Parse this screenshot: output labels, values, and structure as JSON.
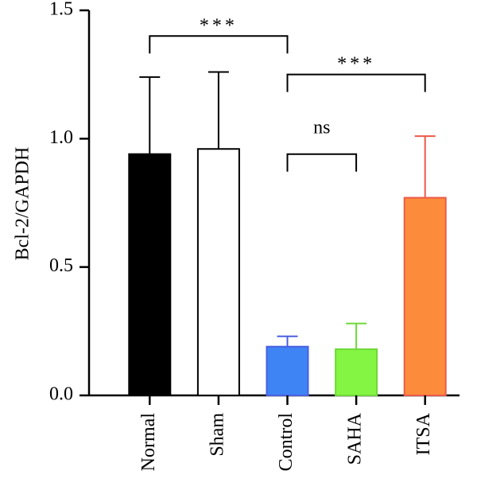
{
  "chart_data": {
    "type": "bar",
    "title": "",
    "xlabel": "",
    "ylabel": "Bcl-2/GAPDH",
    "ylim": [
      0,
      1.5
    ],
    "yticks": [
      "0.0",
      "0.5",
      "1.0",
      "1.5"
    ],
    "categories": [
      "Normal",
      "Sham",
      "Control",
      "SAHA",
      "ITSA"
    ],
    "values": [
      0.94,
      0.96,
      0.19,
      0.18,
      0.77
    ],
    "errors": [
      0.3,
      0.3,
      0.04,
      0.1,
      0.24
    ],
    "colors": [
      "#000000",
      "#ffffff",
      "#3f84f5",
      "#84f542",
      "#fc8c3c"
    ],
    "edge_colors": [
      "#000000",
      "#000000",
      "#4a5fe0",
      "#6fd83a",
      "#ec5a4a"
    ],
    "grid": false,
    "legend": "none",
    "comparisons": [
      {
        "from": "Normal",
        "to": "Control",
        "label": "***",
        "level": 1.4
      },
      {
        "from": "Control",
        "to": "ITSA",
        "label": "***",
        "level": 1.25
      },
      {
        "from": "Control",
        "to": "SAHA",
        "label": "ns",
        "level": 0.94
      }
    ]
  }
}
